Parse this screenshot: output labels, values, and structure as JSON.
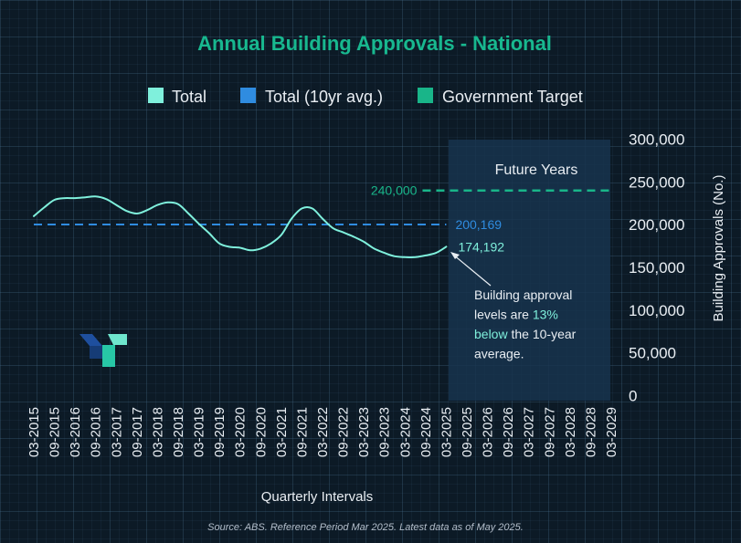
{
  "colors": {
    "title": "#18b88f",
    "total_line": "#7ff0dc",
    "avg_line": "#2f8ce0",
    "target_line": "#19b589",
    "future_region": "#17344d",
    "text": "#e9eef3",
    "highlight": "#7ff0dc"
  },
  "chart_data": {
    "type": "line",
    "title": "Annual Building Approvals - National",
    "xlabel": "Quarterly Intervals",
    "ylabel": "Building Approvals (No.)",
    "ylim": [
      0,
      300000
    ],
    "yticks": [
      0,
      50000,
      100000,
      150000,
      200000,
      250000,
      300000
    ],
    "ytick_labels": [
      "0",
      "50,000",
      "100,000",
      "150,000",
      "200,000",
      "250,000",
      "300,000"
    ],
    "categories": [
      "03-2015",
      "09-2015",
      "03-2016",
      "09-2016",
      "03-2017",
      "09-2017",
      "03-2018",
      "09-2018",
      "03-2019",
      "09-2019",
      "03-2020",
      "09-2020",
      "03-2021",
      "09-2021",
      "03-2022",
      "09-2022",
      "03-2023",
      "09-2023",
      "03-2024",
      "09-2024",
      "03-2025",
      "09-2025",
      "03-2026",
      "09-2026",
      "03-2027",
      "09-2027",
      "03-2028",
      "09-2028",
      "03-2029"
    ],
    "legend": [
      "Total",
      "Total (10yr avg.)",
      "Government Target"
    ],
    "legend_position": "top",
    "grid": true,
    "series": [
      {
        "name": "Total",
        "x": [
          "03-2015",
          "06-2015",
          "09-2015",
          "12-2015",
          "03-2016",
          "06-2016",
          "09-2016",
          "12-2016",
          "03-2017",
          "06-2017",
          "09-2017",
          "12-2017",
          "03-2018",
          "06-2018",
          "09-2018",
          "12-2018",
          "03-2019",
          "06-2019",
          "09-2019",
          "12-2019",
          "03-2020",
          "06-2020",
          "09-2020",
          "12-2020",
          "03-2021",
          "06-2021",
          "09-2021",
          "12-2021",
          "03-2022",
          "06-2022",
          "09-2022",
          "12-2022",
          "03-2023",
          "06-2023",
          "09-2023",
          "12-2023",
          "03-2024",
          "06-2024",
          "09-2024",
          "12-2024",
          "03-2025"
        ],
        "values": [
          210000,
          220000,
          229000,
          231000,
          231000,
          232000,
          233000,
          230000,
          223000,
          216000,
          213000,
          217000,
          223000,
          226000,
          224000,
          213000,
          201000,
          190000,
          178000,
          174000,
          173000,
          170000,
          172000,
          178000,
          188000,
          207000,
          219000,
          219000,
          207000,
          196000,
          191000,
          186000,
          180000,
          172000,
          167000,
          163000,
          162000,
          162000,
          164000,
          167000,
          174192
        ]
      },
      {
        "name": "Total (10yr avg.)",
        "x_range": [
          "03-2015",
          "03-2025"
        ],
        "value": 200169,
        "label": "200,169"
      },
      {
        "name": "Government Target",
        "x_range": [
          "03-2025",
          "03-2029"
        ],
        "value": 240000,
        "label": "240,000"
      }
    ],
    "annotations": {
      "future_years": "Future Years",
      "last_value": "174,192",
      "note_lines": [
        [
          "Building approval",
          ""
        ],
        [
          "levels are ",
          "13%"
        ],
        [
          "below",
          " the 10-year"
        ],
        [
          "average.",
          ""
        ]
      ]
    },
    "source": "Source: ABS. Reference Period Mar 2025. Latest data as of May 2025."
  }
}
